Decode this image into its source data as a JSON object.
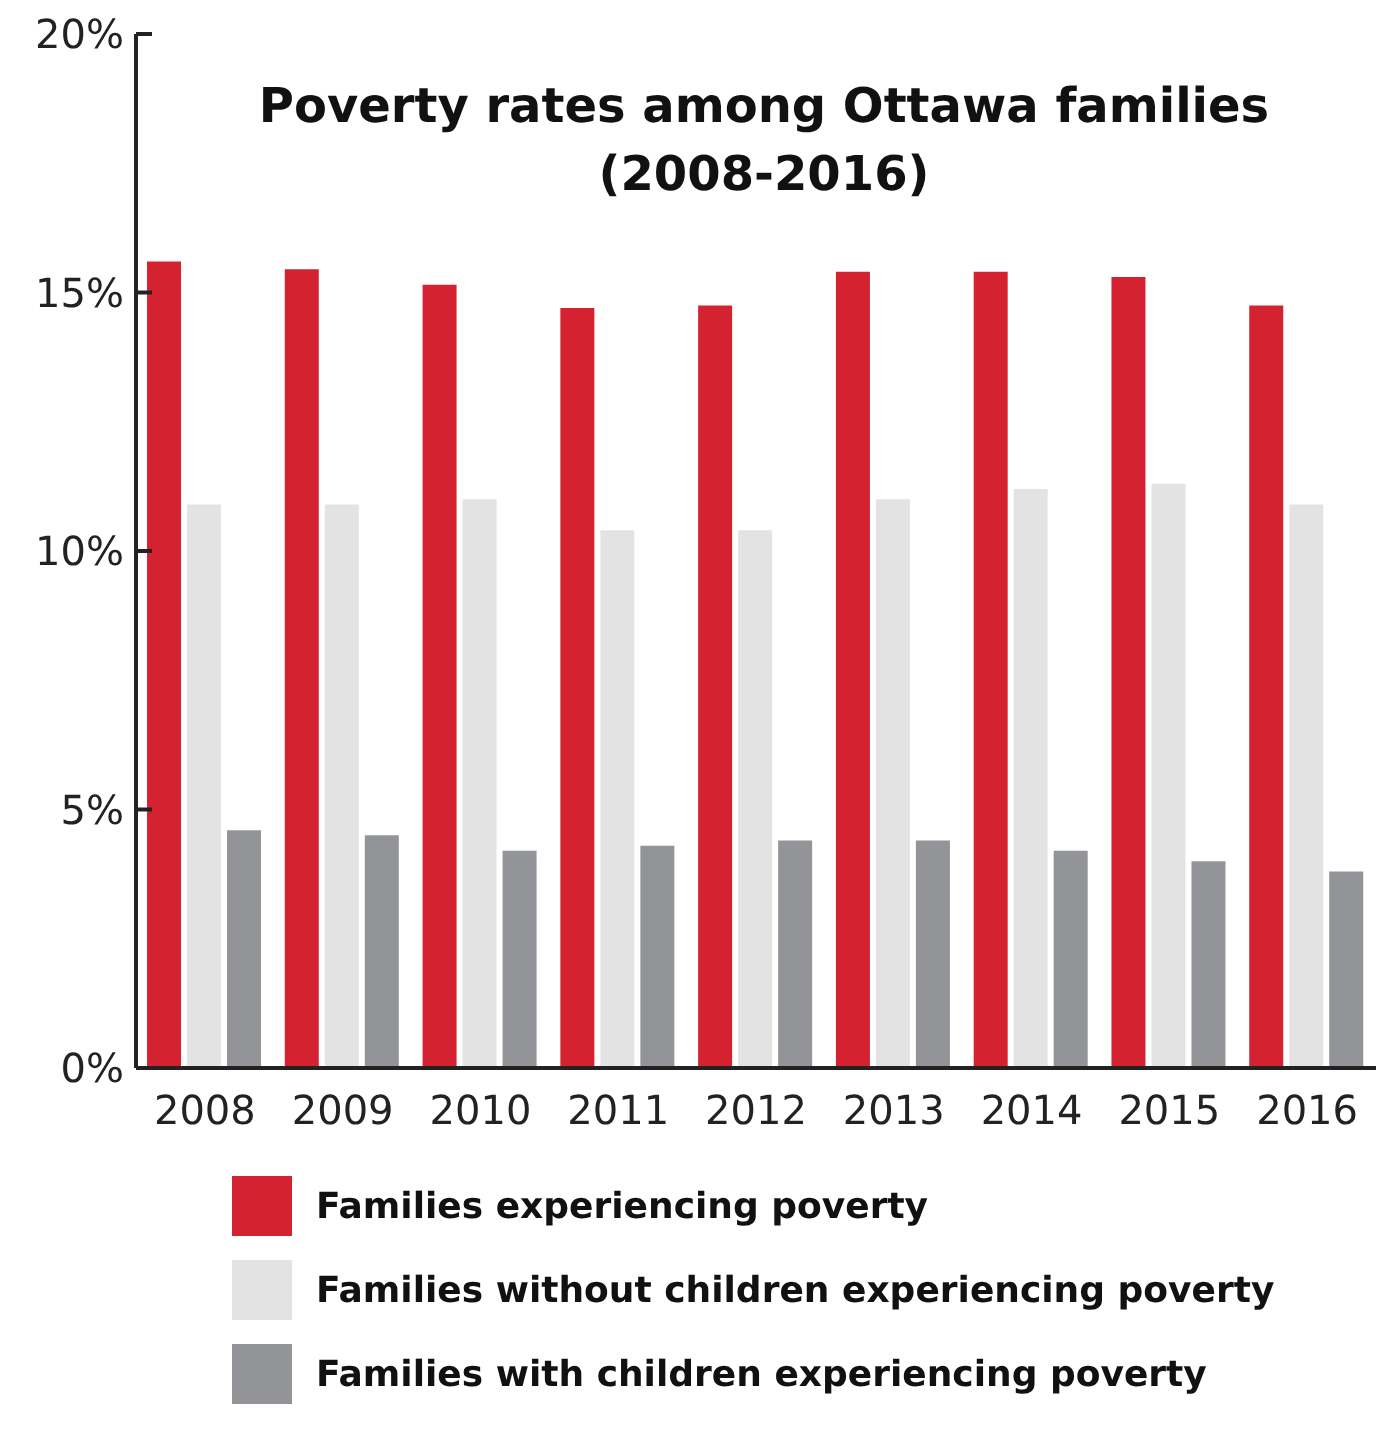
{
  "chart_data": {
    "type": "bar",
    "title": "Poverty rates among Ottawa families\n(2008-2016)",
    "categories": [
      "2008",
      "2009",
      "2010",
      "2011",
      "2012",
      "2013",
      "2014",
      "2015",
      "2016"
    ],
    "series": [
      {
        "name": "Families experiencing poverty",
        "color": "#d52231",
        "values": [
          15.6,
          15.45,
          15.15,
          14.7,
          14.75,
          15.4,
          15.4,
          15.3,
          14.75
        ]
      },
      {
        "name": "Families without children experiencing poverty",
        "color": "#e3e3e4",
        "values": [
          10.9,
          10.9,
          11.0,
          10.4,
          10.4,
          11.0,
          11.2,
          11.3,
          10.9
        ]
      },
      {
        "name": "Families with children experiencing poverty",
        "color": "#939497",
        "values": [
          4.6,
          4.5,
          4.2,
          4.3,
          4.4,
          4.4,
          4.2,
          4.0,
          3.8
        ]
      }
    ],
    "ylim": [
      0,
      20
    ],
    "yticks": [
      {
        "value": 0,
        "label": "0%"
      },
      {
        "value": 5,
        "label": "5%"
      },
      {
        "value": 10,
        "label": "10%"
      },
      {
        "value": 15,
        "label": "15%"
      },
      {
        "value": 20,
        "label": "20%"
      }
    ],
    "grid": false,
    "legend": "bottom"
  }
}
